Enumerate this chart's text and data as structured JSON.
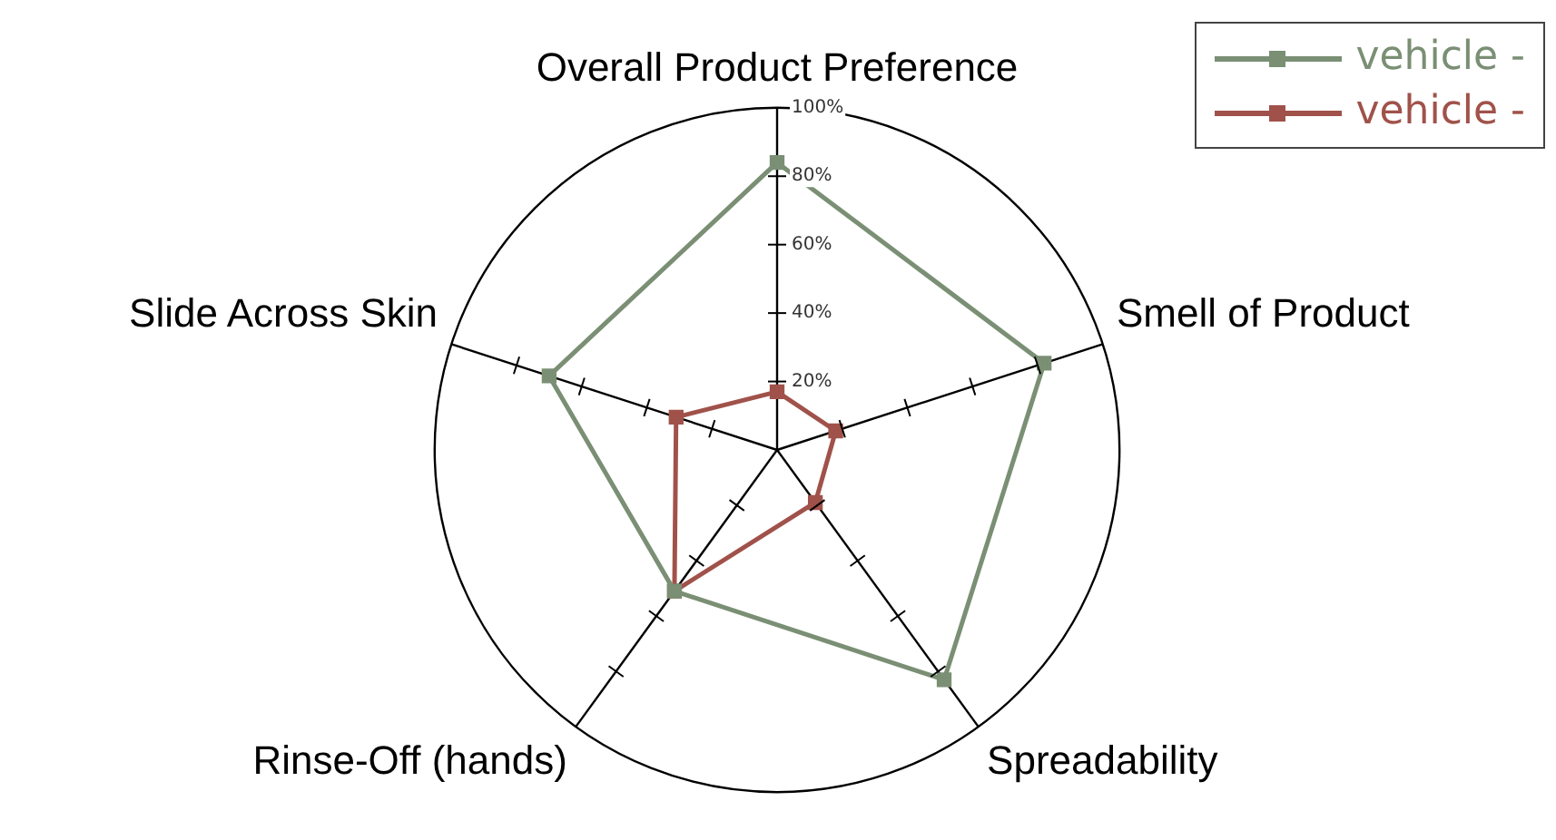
{
  "chart_data": {
    "type": "radar",
    "categories": [
      "Overall Product Preference",
      "Smell of Product",
      "Spreadability",
      "Rinse-Off (hands)",
      "Slide Across Skin"
    ],
    "series": [
      {
        "name": "vehicle -",
        "color": "#7a8f74",
        "values": [
          84,
          82,
          83,
          51,
          70
        ]
      },
      {
        "name": "vehicle -",
        "color": "#a0524a",
        "values": [
          17,
          18,
          19,
          51,
          31
        ]
      }
    ],
    "ylim": [
      0,
      100
    ],
    "yticks": [
      {
        "value": 20,
        "label": "20%"
      },
      {
        "value": 40,
        "label": "40%"
      },
      {
        "value": 60,
        "label": "60%"
      },
      {
        "value": 80,
        "label": "80%"
      },
      {
        "value": 100,
        "label": "100%"
      }
    ],
    "marker": "square",
    "line_style": "solid",
    "legend": "top right"
  }
}
